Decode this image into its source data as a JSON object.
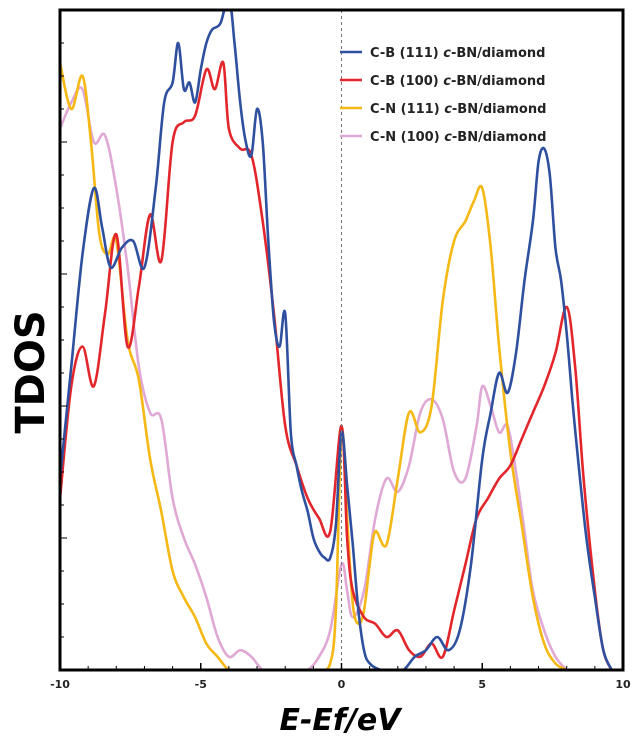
{
  "chart_data": {
    "type": "line",
    "xlabel": "E-Ef/eV",
    "ylabel": "TDOS",
    "xlim": [
      -10,
      10
    ],
    "ylim": [
      0,
      10
    ],
    "xticks": [
      -10,
      -5,
      0,
      5,
      10
    ],
    "fermi_level": 0,
    "grid": false,
    "legend_position": "top-right",
    "series": [
      {
        "name": "C-B (111) c-BN/diamond",
        "color": "#2f4f9f",
        "x": [
          -10,
          -9.6,
          -9.2,
          -8.8,
          -8.5,
          -8.2,
          -7.8,
          -7.4,
          -7.0,
          -6.6,
          -6.3,
          -6.0,
          -5.8,
          -5.6,
          -5.4,
          -5.2,
          -5.0,
          -4.8,
          -4.6,
          -4.3,
          -4.0,
          -3.8,
          -3.6,
          -3.4,
          -3.2,
          -3.0,
          -2.8,
          -2.6,
          -2.4,
          -2.2,
          -2.0,
          -1.8,
          -1.6,
          -1.4,
          -1.2,
          -1.0,
          -0.8,
          -0.6,
          -0.4,
          -0.2,
          0.0,
          0.2,
          0.4,
          0.6,
          0.8,
          1.0,
          1.4,
          1.8,
          2.2,
          2.6,
          3.0,
          3.4,
          3.8,
          4.2,
          4.6,
          5.0,
          5.3,
          5.6,
          5.9,
          6.2,
          6.5,
          6.8,
          7.0,
          7.2,
          7.4,
          7.6,
          7.8,
          8.0,
          8.2,
          8.4,
          8.7,
          9.0,
          9.3,
          9.6
        ],
        "y": [
          2.9,
          4.6,
          6.3,
          7.3,
          6.7,
          6.1,
          6.4,
          6.5,
          6.1,
          7.3,
          8.6,
          8.9,
          9.5,
          8.8,
          8.9,
          8.6,
          9.1,
          9.5,
          9.7,
          9.8,
          10.2,
          9.5,
          8.6,
          8.0,
          7.8,
          8.5,
          8.0,
          6.5,
          5.3,
          4.9,
          5.4,
          3.6,
          3.1,
          2.7,
          2.4,
          2.0,
          1.8,
          1.7,
          1.7,
          2.2,
          3.6,
          2.8,
          1.9,
          0.9,
          0.3,
          0.1,
          0.0,
          0.0,
          0.0,
          0.2,
          0.3,
          0.5,
          0.3,
          0.6,
          1.6,
          3.2,
          3.9,
          4.5,
          4.2,
          4.8,
          5.9,
          6.8,
          7.7,
          7.9,
          7.5,
          6.4,
          5.9,
          5.1,
          4.1,
          3.2,
          2.0,
          1.1,
          0.3,
          0.0
        ]
      },
      {
        "name": "C-B (100) c-BN/diamond",
        "color": "#e2262b",
        "x": [
          -10,
          -9.6,
          -9.2,
          -8.8,
          -8.4,
          -8.0,
          -7.6,
          -7.2,
          -6.8,
          -6.4,
          -6.0,
          -5.6,
          -5.2,
          -4.8,
          -4.5,
          -4.2,
          -4.0,
          -3.6,
          -3.2,
          -2.8,
          -2.4,
          -2.0,
          -1.6,
          -1.2,
          -0.8,
          -0.4,
          0.0,
          0.2,
          0.4,
          0.8,
          1.2,
          1.6,
          2.0,
          2.4,
          2.8,
          3.2,
          3.6,
          4.0,
          4.4,
          4.8,
          5.2,
          5.6,
          6.0,
          6.4,
          6.8,
          7.2,
          7.6,
          8.0,
          8.3,
          8.6,
          9.0,
          9.3,
          9.6
        ],
        "y": [
          2.6,
          4.3,
          4.9,
          4.3,
          5.4,
          6.6,
          4.9,
          5.8,
          6.9,
          6.2,
          8.0,
          8.3,
          8.4,
          9.1,
          8.8,
          9.2,
          8.2,
          7.9,
          7.8,
          6.8,
          5.4,
          3.7,
          3.1,
          2.6,
          2.3,
          2.1,
          3.7,
          2.0,
          1.2,
          0.8,
          0.7,
          0.5,
          0.6,
          0.3,
          0.2,
          0.4,
          0.2,
          0.9,
          1.6,
          2.3,
          2.6,
          2.9,
          3.1,
          3.5,
          3.9,
          4.3,
          4.8,
          5.5,
          4.6,
          2.9,
          1.2,
          0.3,
          0.0
        ]
      },
      {
        "name": "C-N (111) c-BN/diamond",
        "color": "#f5b814",
        "x": [
          -10,
          -9.6,
          -9.2,
          -8.9,
          -8.6,
          -8.3,
          -8.0,
          -7.6,
          -7.2,
          -6.8,
          -6.4,
          -6.0,
          -5.6,
          -5.2,
          -4.8,
          -4.4,
          -4.0,
          -3.6,
          -3.2,
          -2.8,
          -2.4,
          -2.0,
          -1.6,
          -1.2,
          -0.8,
          -0.4,
          -0.2,
          0.0,
          0.2,
          0.4,
          0.6,
          0.8,
          1.0,
          1.2,
          1.6,
          2.0,
          2.4,
          2.8,
          3.2,
          3.6,
          4.0,
          4.4,
          4.7,
          5.0,
          5.3,
          5.6,
          6.0,
          6.4,
          6.8,
          7.2,
          7.6,
          8.0
        ],
        "y": [
          9.2,
          8.5,
          9.0,
          8.0,
          6.6,
          6.3,
          6.5,
          5.0,
          4.4,
          3.2,
          2.4,
          1.5,
          1.1,
          0.8,
          0.4,
          0.2,
          0.0,
          0.0,
          0.0,
          0.0,
          0.0,
          0.0,
          0.0,
          0.0,
          0.0,
          0.1,
          0.9,
          3.6,
          2.3,
          1.0,
          0.7,
          0.9,
          1.6,
          2.1,
          1.9,
          2.9,
          3.9,
          3.6,
          4.0,
          5.6,
          6.5,
          6.8,
          7.1,
          7.3,
          6.4,
          4.9,
          3.3,
          2.2,
          1.1,
          0.4,
          0.1,
          0.0
        ]
      },
      {
        "name": "C-N (100) c-BN/diamond",
        "color": "#e0a8d4",
        "x": [
          -10,
          -9.6,
          -9.2,
          -8.8,
          -8.4,
          -8.0,
          -7.6,
          -7.2,
          -6.8,
          -6.4,
          -6.0,
          -5.6,
          -5.2,
          -4.8,
          -4.4,
          -4.0,
          -3.6,
          -3.2,
          -2.8,
          -2.4,
          -2.0,
          -1.6,
          -1.2,
          -0.8,
          -0.4,
          0.0,
          0.2,
          0.4,
          0.8,
          1.2,
          1.6,
          2.0,
          2.4,
          2.8,
          3.2,
          3.6,
          4.0,
          4.4,
          4.8,
          5.0,
          5.3,
          5.6,
          5.9,
          6.2,
          6.5,
          6.8,
          7.2,
          7.6,
          8.0
        ],
        "y": [
          8.2,
          8.6,
          8.8,
          8.0,
          8.1,
          7.3,
          6.1,
          4.6,
          3.9,
          3.8,
          2.6,
          2.0,
          1.6,
          1.1,
          0.5,
          0.2,
          0.3,
          0.2,
          0.0,
          0.0,
          0.0,
          0.0,
          0.0,
          0.2,
          0.6,
          1.6,
          1.2,
          0.8,
          1.2,
          2.3,
          2.9,
          2.7,
          3.1,
          3.9,
          4.1,
          3.8,
          3.0,
          2.9,
          3.7,
          4.3,
          4.0,
          3.6,
          3.7,
          3.0,
          2.1,
          1.2,
          0.6,
          0.2,
          0.0
        ]
      }
    ]
  }
}
